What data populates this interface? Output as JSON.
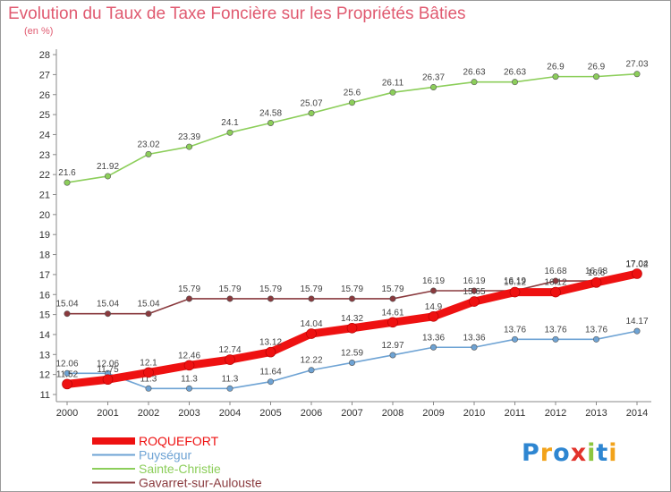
{
  "title": "Evolution du Taux de Taxe Foncière sur les Propriétés Bâties",
  "unit_label": "(en %)",
  "logo": {
    "text": "Proxiti",
    "colors": [
      "#2e86d1",
      "#f2a31b",
      "#2e86d1",
      "#e2332b",
      "#8cc63f",
      "#2e86d1",
      "#f2a31b"
    ]
  },
  "chart_data": {
    "type": "line",
    "x": [
      "2000",
      "2001",
      "2002",
      "2003",
      "2004",
      "2005",
      "2006",
      "2007",
      "2008",
      "2009",
      "2010",
      "2011",
      "2012",
      "2013",
      "2014"
    ],
    "ylim": [
      11,
      28
    ],
    "yticks": [
      "11",
      "12",
      "13",
      "14",
      "15",
      "16",
      "17",
      "18",
      "19",
      "20",
      "21",
      "22",
      "23",
      "24",
      "25",
      "26",
      "27",
      "28"
    ],
    "grid": false,
    "legend_position": "bottom-left",
    "series": [
      {
        "name": "Sainte-Christie",
        "color": "#8cce5a",
        "values": [
          21.6,
          21.92,
          23.02,
          23.39,
          24.1,
          24.58,
          25.07,
          25.6,
          26.11,
          26.37,
          26.63,
          26.63,
          26.9,
          26.9,
          27.03
        ],
        "labels": [
          "21.6",
          "21.92",
          "23.02",
          "23.39",
          "24.1",
          "24.58",
          "25.07",
          "25.6",
          "26.11",
          "26.37",
          "26.63",
          "26.63",
          "26.9",
          "26.9",
          "27.03"
        ]
      },
      {
        "name": "Gavarret-sur-Aulouste",
        "color": "#8a3a3e",
        "values": [
          15.04,
          15.04,
          15.04,
          15.79,
          15.79,
          15.79,
          15.79,
          15.79,
          15.79,
          16.19,
          16.19,
          16.19,
          16.68,
          16.68,
          17.02
        ],
        "labels": [
          "15.04",
          "15.04",
          "15.04",
          "15.79",
          "15.79",
          "15.79",
          "15.79",
          "15.79",
          "15.79",
          "16.19",
          "16.19",
          "16.19",
          "16.68",
          "16.68",
          "17.02"
        ]
      },
      {
        "name": "Puységur",
        "color": "#6ea3d4",
        "values": [
          12.06,
          12.06,
          11.3,
          11.3,
          11.3,
          11.64,
          12.22,
          12.59,
          12.97,
          13.36,
          13.36,
          13.76,
          13.76,
          13.76,
          14.17
        ],
        "labels": [
          "12.06",
          "12.06",
          "11.3",
          "11.3",
          "11.3",
          "11.64",
          "12.22",
          "12.59",
          "12.97",
          "13.36",
          "13.36",
          "13.76",
          "13.76",
          "13.76",
          "14.17"
        ]
      },
      {
        "name": "ROQUEFORT",
        "color": "#ee1111",
        "values": [
          11.52,
          11.75,
          12.1,
          12.46,
          12.74,
          13.12,
          14.04,
          14.32,
          14.61,
          14.9,
          15.65,
          16.12,
          16.12,
          16.6,
          17.04
        ],
        "labels": [
          "11.52",
          "11.75",
          "12.1",
          "12.46",
          "12.74",
          "13.12",
          "14.04",
          "14.32",
          "14.61",
          "14.9",
          "15.65",
          "16.12",
          "16.12",
          "16.6",
          "17.04"
        ]
      }
    ],
    "legend": [
      "ROQUEFORT",
      "Puységur",
      "Sainte-Christie",
      "Gavarret-sur-Aulouste"
    ]
  }
}
